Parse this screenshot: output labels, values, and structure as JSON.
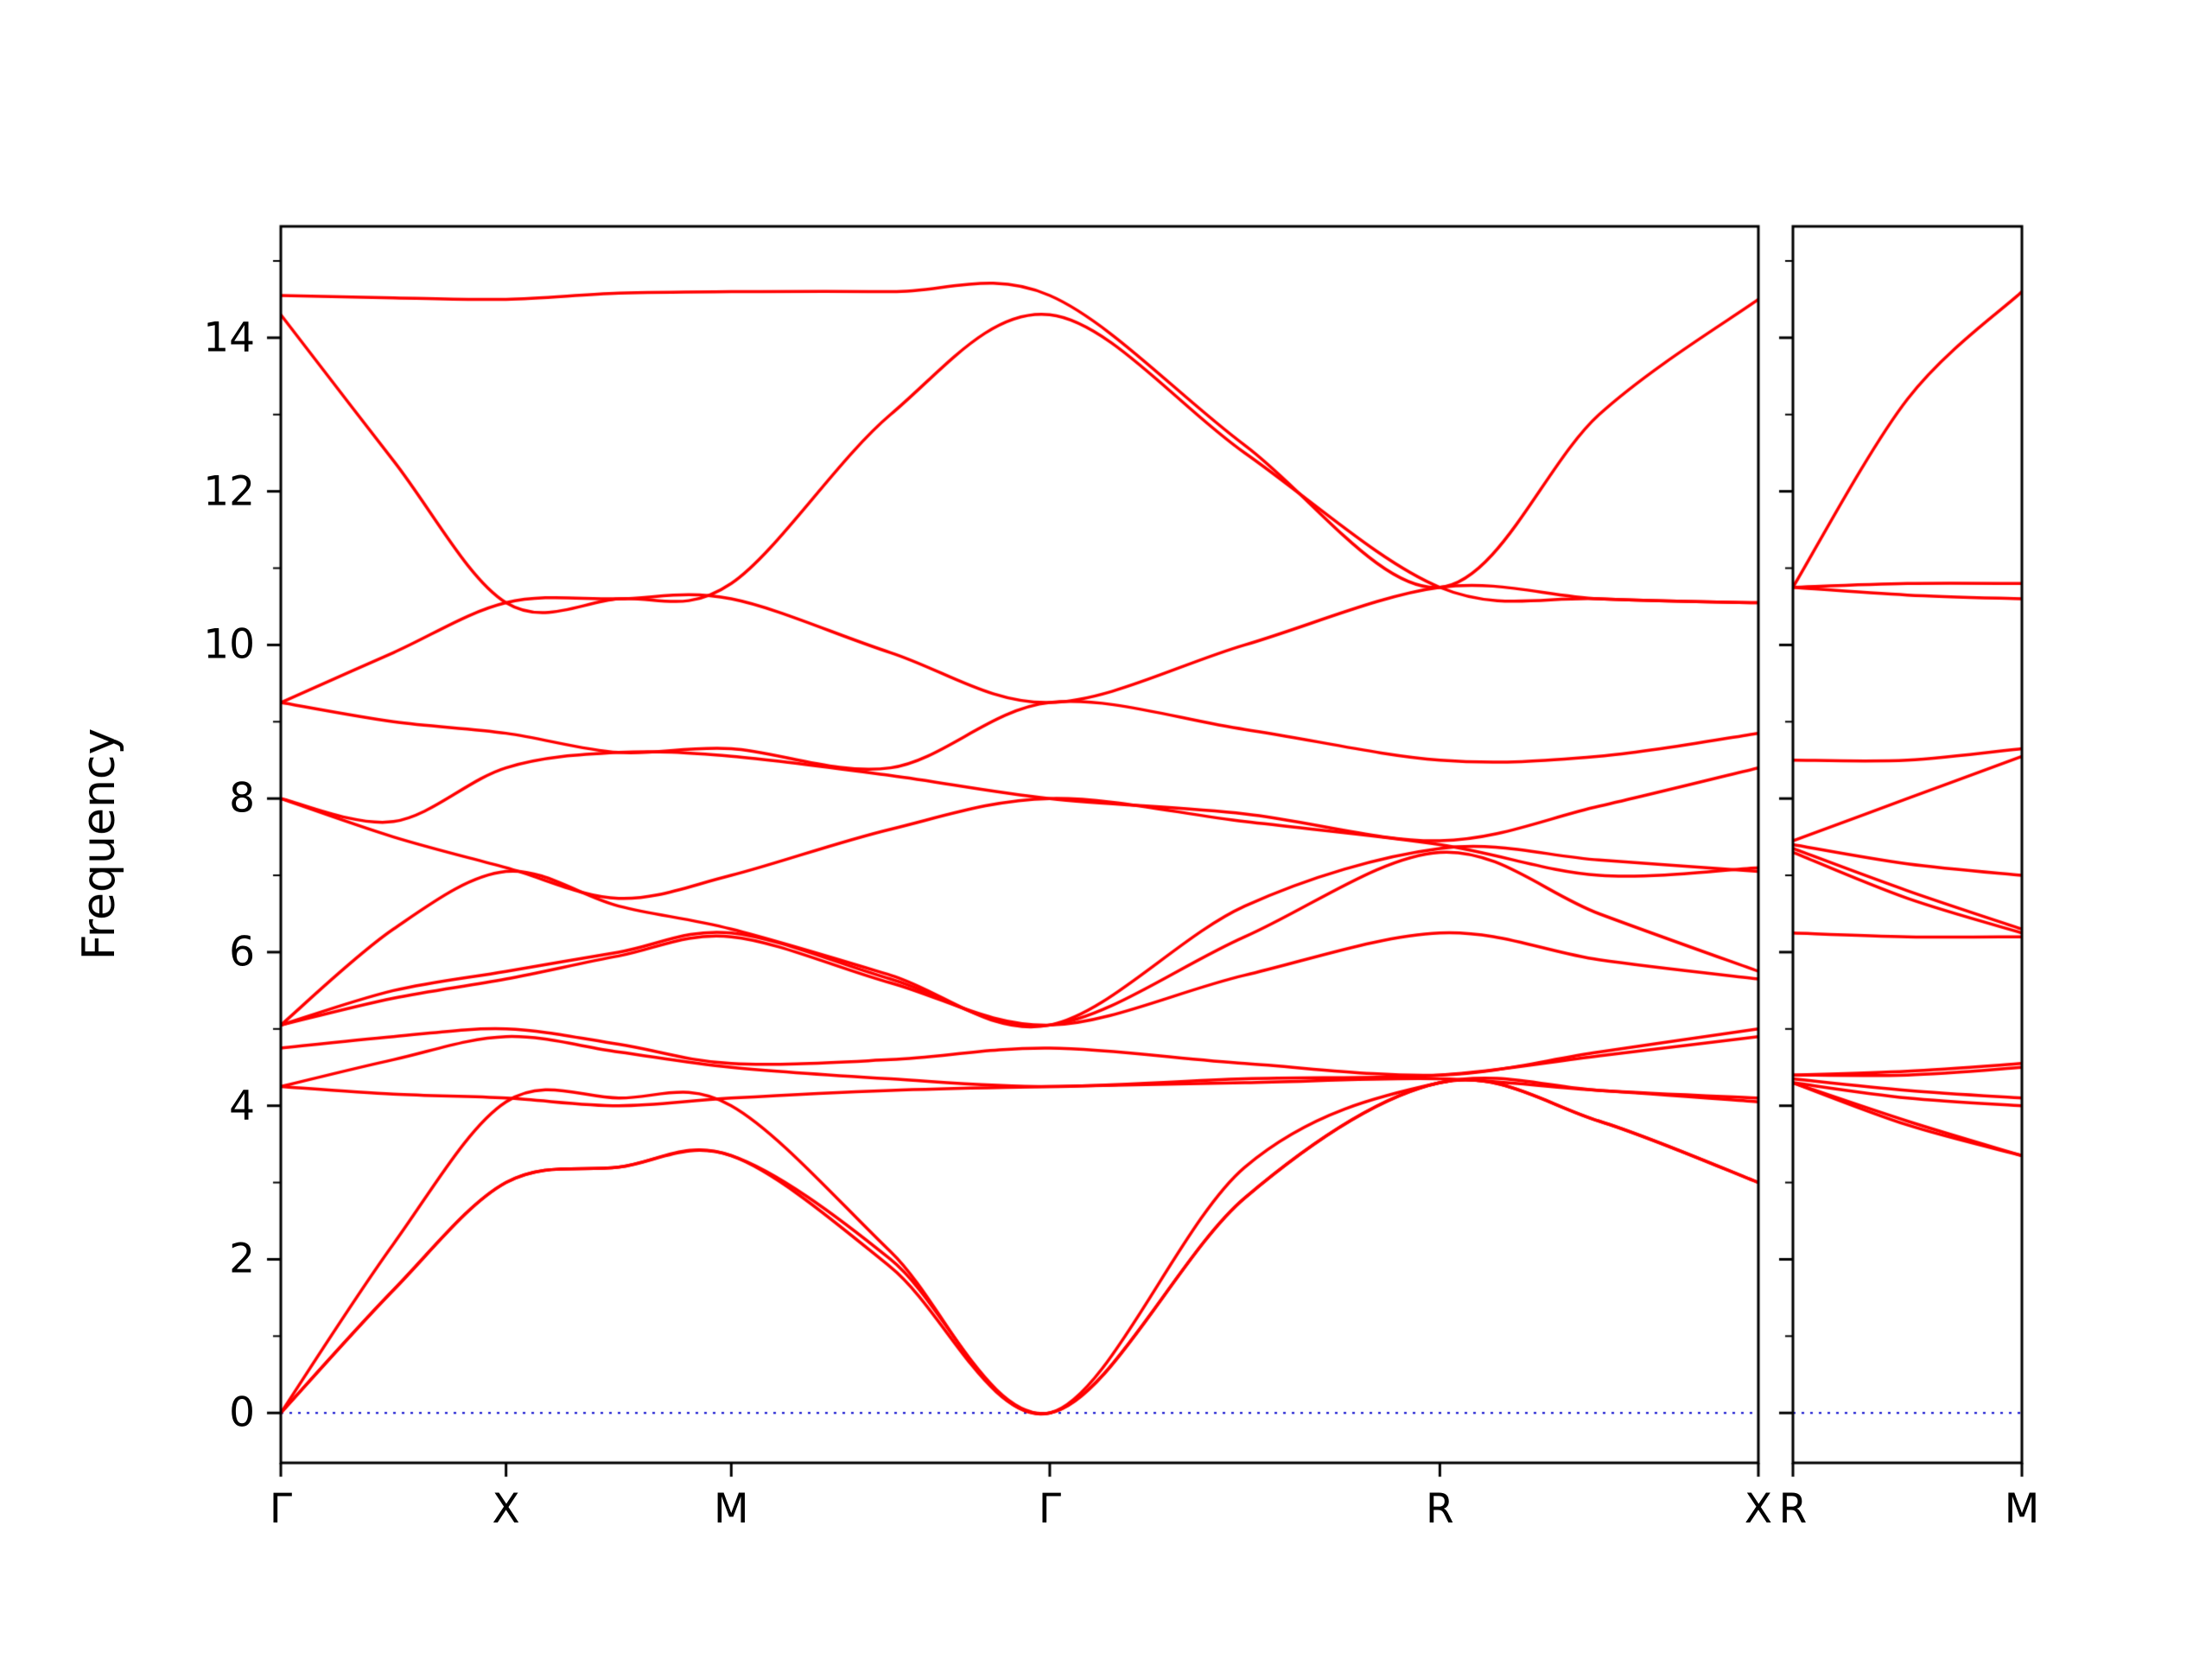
{
  "figure": {
    "background": "#ffffff"
  },
  "chart_data": {
    "type": "line",
    "title": "",
    "xlabel": "",
    "ylabel": "Frequency",
    "ylim": [
      -0.65,
      15.45
    ],
    "yticks": [
      0,
      2,
      4,
      6,
      8,
      10,
      12,
      14
    ],
    "ytick_labels": [
      "0",
      "2",
      "4",
      "6",
      "8",
      "10",
      "12",
      "14"
    ],
    "grid": false,
    "legend": "none",
    "band_line_color": "#ff0000",
    "zero_line_color": "#0000cc",
    "zero_line_style": "dotted",
    "zero_line_value": 0,
    "panels": [
      {
        "name": "main",
        "k_labels": [
          "Γ",
          "X",
          "M",
          "Γ",
          "R",
          "X"
        ],
        "tick_positions": [
          0,
          0.5,
          1.0,
          1.70711,
          2.57313,
          3.28024
        ],
        "sample_positions": [
          0,
          0.25,
          0.5,
          0.75,
          1.0,
          1.35355,
          1.70711,
          2.14012,
          2.57313,
          2.92669,
          3.28024
        ],
        "bands": [
          [
            0,
            1.6,
            3.0,
            3.2,
            3.35,
            1.9,
            0,
            2.8,
            4.3,
            3.8,
            3.0
          ],
          [
            0,
            1.6,
            3.0,
            3.2,
            3.35,
            2.0,
            0,
            2.8,
            4.3,
            3.8,
            3.0
          ],
          [
            0,
            2.2,
            4.05,
            4.1,
            4.0,
            2.1,
            0,
            3.2,
            4.3,
            4.2,
            4.05
          ],
          [
            4.25,
            4.15,
            4.1,
            4.0,
            4.1,
            4.2,
            4.25,
            4.3,
            4.35,
            4.2,
            4.1
          ],
          [
            4.25,
            4.6,
            4.9,
            4.7,
            4.5,
            4.35,
            4.25,
            4.35,
            4.4,
            4.65,
            4.9
          ],
          [
            4.75,
            4.9,
            5.0,
            4.8,
            4.55,
            4.6,
            4.75,
            4.55,
            4.4,
            4.7,
            5.0
          ],
          [
            5.05,
            5.4,
            5.65,
            5.95,
            6.2,
            5.6,
            5.05,
            5.7,
            6.25,
            5.9,
            5.65
          ],
          [
            5.05,
            5.5,
            5.75,
            6.0,
            6.25,
            5.65,
            5.05,
            6.2,
            7.3,
            6.5,
            5.75
          ],
          [
            5.05,
            6.3,
            7.05,
            6.6,
            6.3,
            5.7,
            5.05,
            6.6,
            7.35,
            7.2,
            7.05
          ],
          [
            8.0,
            7.5,
            7.1,
            6.7,
            7.0,
            7.6,
            8.0,
            7.7,
            7.4,
            7.0,
            7.1
          ],
          [
            8.0,
            7.7,
            8.4,
            8.6,
            8.55,
            8.3,
            8.0,
            7.8,
            7.45,
            7.9,
            8.4
          ],
          [
            9.25,
            9.0,
            8.85,
            8.6,
            8.65,
            8.4,
            9.25,
            8.9,
            8.5,
            8.55,
            8.85
          ],
          [
            9.25,
            9.9,
            10.55,
            10.6,
            10.6,
            9.9,
            9.25,
            10.0,
            10.75,
            10.6,
            10.55
          ],
          [
            14.3,
            12.4,
            10.55,
            10.6,
            10.8,
            13.0,
            14.3,
            12.5,
            10.75,
            10.6,
            10.55
          ],
          [
            14.55,
            14.52,
            14.5,
            14.58,
            14.6,
            14.6,
            14.55,
            12.6,
            10.75,
            13.0,
            14.5
          ]
        ]
      },
      {
        "name": "right",
        "k_labels": [
          "R",
          "M"
        ],
        "tick_positions": [
          0,
          0.5
        ],
        "sample_positions": [
          0,
          0.25,
          0.5
        ],
        "bands": [
          [
            4.3,
            3.75,
            3.35
          ],
          [
            4.3,
            3.8,
            3.35
          ],
          [
            4.3,
            4.1,
            4.0
          ],
          [
            4.35,
            4.2,
            4.1
          ],
          [
            4.4,
            4.4,
            4.5
          ],
          [
            4.4,
            4.45,
            4.55
          ],
          [
            6.25,
            6.2,
            6.2
          ],
          [
            7.3,
            6.7,
            6.25
          ],
          [
            7.35,
            6.8,
            6.3
          ],
          [
            7.4,
            7.15,
            7.0
          ],
          [
            7.45,
            8.0,
            8.55
          ],
          [
            8.5,
            8.5,
            8.65
          ],
          [
            10.75,
            10.65,
            10.6
          ],
          [
            10.75,
            10.8,
            10.8
          ],
          [
            10.75,
            13.2,
            14.6
          ]
        ]
      }
    ]
  }
}
